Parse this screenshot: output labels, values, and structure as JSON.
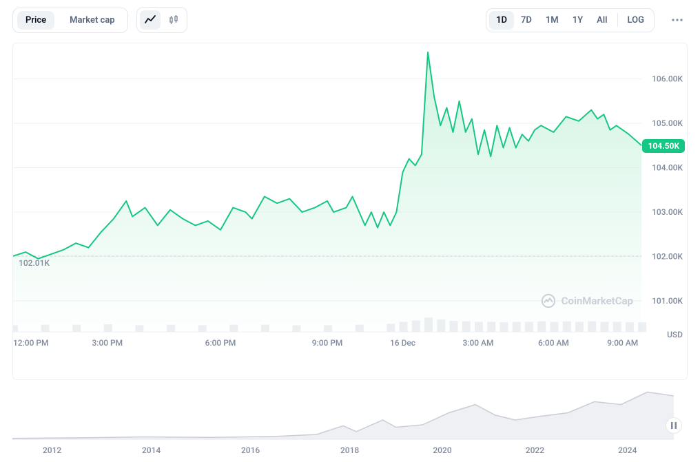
{
  "toolbar": {
    "price_label": "Price",
    "marketcap_label": "Market cap",
    "ranges": [
      "1D",
      "7D",
      "1M",
      "1Y",
      "All"
    ],
    "active_range": "1D",
    "log_label": "LOG"
  },
  "chart": {
    "type": "line",
    "line_color": "#16c784",
    "fill_top": "#d1f4e2",
    "fill_bottom": "rgba(209,244,226,0.02)",
    "grid_color": "#eef0f3",
    "bg": "#ffffff",
    "axis_text_color": "#808a9d",
    "current_price_label": "104.50K",
    "current_price_bg": "#16c784",
    "start_label": "102.01K",
    "y_ticks": [
      "106.00K",
      "105.00K",
      "104.00K",
      "103.00K",
      "102.00K",
      "101.00K"
    ],
    "y_unit": "USD",
    "x_labels": [
      "12:00 PM",
      "3:00 PM",
      "6:00 PM",
      "9:00 PM",
      "16 Dec",
      "3:00 AM",
      "6:00 AM",
      "9:00 AM"
    ],
    "y_domain": [
      100.3,
      106.8
    ],
    "series": [
      [
        0,
        102.01
      ],
      [
        2,
        102.1
      ],
      [
        4,
        101.95
      ],
      [
        6,
        102.05
      ],
      [
        8,
        102.15
      ],
      [
        10,
        102.3
      ],
      [
        12,
        102.2
      ],
      [
        14,
        102.55
      ],
      [
        16,
        102.85
      ],
      [
        18,
        103.25
      ],
      [
        19,
        102.9
      ],
      [
        21,
        103.1
      ],
      [
        23,
        102.7
      ],
      [
        25,
        103.05
      ],
      [
        27,
        102.85
      ],
      [
        29,
        102.7
      ],
      [
        31,
        102.8
      ],
      [
        33,
        102.6
      ],
      [
        35,
        103.1
      ],
      [
        37,
        103.0
      ],
      [
        38,
        102.85
      ],
      [
        40,
        103.35
      ],
      [
        42,
        103.2
      ],
      [
        44,
        103.3
      ],
      [
        46,
        103.0
      ],
      [
        48,
        103.1
      ],
      [
        50,
        103.25
      ],
      [
        51,
        103.0
      ],
      [
        53,
        103.1
      ],
      [
        54,
        103.35
      ],
      [
        56,
        102.7
      ],
      [
        57,
        103.0
      ],
      [
        58,
        102.65
      ],
      [
        59,
        103.0
      ],
      [
        60,
        102.7
      ],
      [
        61,
        103.0
      ],
      [
        62,
        103.9
      ],
      [
        63,
        104.2
      ],
      [
        64,
        104.05
      ],
      [
        65,
        104.3
      ],
      [
        66,
        106.6
      ],
      [
        67,
        105.6
      ],
      [
        68,
        104.95
      ],
      [
        69,
        105.35
      ],
      [
        70,
        104.8
      ],
      [
        71,
        105.5
      ],
      [
        72,
        104.8
      ],
      [
        73,
        105.1
      ],
      [
        74,
        104.3
      ],
      [
        75,
        104.85
      ],
      [
        76,
        104.25
      ],
      [
        77,
        104.95
      ],
      [
        78,
        104.45
      ],
      [
        79,
        104.9
      ],
      [
        80,
        104.45
      ],
      [
        81,
        104.75
      ],
      [
        82,
        104.6
      ],
      [
        83,
        104.85
      ],
      [
        84,
        104.95
      ],
      [
        86,
        104.8
      ],
      [
        88,
        105.15
      ],
      [
        90,
        105.05
      ],
      [
        92,
        105.3
      ],
      [
        93,
        105.1
      ],
      [
        94,
        105.2
      ],
      [
        95,
        104.85
      ],
      [
        96,
        104.95
      ],
      [
        98,
        104.75
      ],
      [
        100,
        104.5
      ]
    ],
    "volume": [
      [
        0,
        0.14
      ],
      [
        5,
        0.15
      ],
      [
        10,
        0.15
      ],
      [
        15,
        0.16
      ],
      [
        20,
        0.14
      ],
      [
        25,
        0.15
      ],
      [
        30,
        0.14
      ],
      [
        35,
        0.15
      ],
      [
        40,
        0.15
      ],
      [
        45,
        0.14
      ],
      [
        50,
        0.14
      ],
      [
        55,
        0.15
      ],
      [
        60,
        0.17
      ],
      [
        62,
        0.21
      ],
      [
        64,
        0.24
      ],
      [
        66,
        0.3
      ],
      [
        68,
        0.26
      ],
      [
        70,
        0.23
      ],
      [
        72,
        0.22
      ],
      [
        74,
        0.21
      ],
      [
        76,
        0.21
      ],
      [
        78,
        0.2
      ],
      [
        80,
        0.21
      ],
      [
        82,
        0.21
      ],
      [
        84,
        0.22
      ],
      [
        86,
        0.21
      ],
      [
        88,
        0.22
      ],
      [
        90,
        0.21
      ],
      [
        92,
        0.22
      ],
      [
        94,
        0.21
      ],
      [
        96,
        0.21
      ],
      [
        98,
        0.2
      ],
      [
        100,
        0.2
      ]
    ],
    "volume_color": "#eceff3"
  },
  "mini": {
    "x_labels": [
      "2012",
      "2014",
      "2016",
      "2018",
      "2020",
      "2022",
      "2024"
    ],
    "line_color": "#c8cdd6",
    "fill": "#eef0f3",
    "series": [
      [
        0,
        0.02
      ],
      [
        10,
        0.03
      ],
      [
        20,
        0.05
      ],
      [
        30,
        0.04
      ],
      [
        40,
        0.06
      ],
      [
        46,
        0.1
      ],
      [
        50,
        0.28
      ],
      [
        52,
        0.16
      ],
      [
        56,
        0.4
      ],
      [
        58,
        0.25
      ],
      [
        62,
        0.3
      ],
      [
        66,
        0.55
      ],
      [
        70,
        0.72
      ],
      [
        73,
        0.5
      ],
      [
        76,
        0.4
      ],
      [
        80,
        0.48
      ],
      [
        84,
        0.55
      ],
      [
        88,
        0.78
      ],
      [
        92,
        0.72
      ],
      [
        96,
        0.98
      ],
      [
        100,
        0.9
      ]
    ]
  },
  "watermark": "CoinMarketCap"
}
